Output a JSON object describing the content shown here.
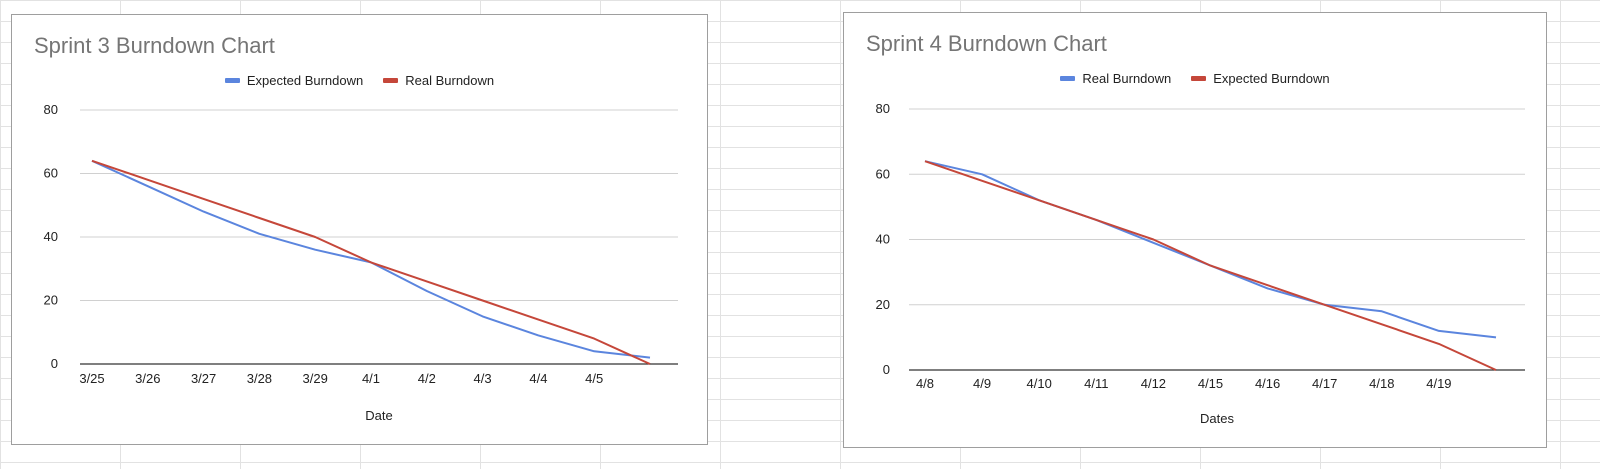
{
  "colors": {
    "blue": "#5b85de",
    "red": "#c5473a",
    "grid": "#d0d0d0",
    "axis": "#333333"
  },
  "chart_data": [
    {
      "type": "line",
      "title": "Sprint 3 Burndown Chart",
      "xlabel": "Date",
      "ylabel": "",
      "categories": [
        "3/25",
        "3/26",
        "3/27",
        "3/28",
        "3/29",
        "4/1",
        "4/2",
        "4/3",
        "4/4",
        "4/5",
        ""
      ],
      "ylim": [
        0,
        80
      ],
      "yticks": [
        0,
        20,
        40,
        60,
        80
      ],
      "grid": true,
      "legend_position": "top",
      "series": [
        {
          "name": "Expected Burndown",
          "color": "#5b85de",
          "values": [
            64,
            56,
            48,
            41,
            36,
            32,
            23,
            15,
            9,
            4,
            2
          ]
        },
        {
          "name": "Real Burndown",
          "color": "#c5473a",
          "values": [
            64,
            58,
            52,
            46,
            40,
            32,
            26,
            20,
            14,
            8,
            0
          ]
        }
      ]
    },
    {
      "type": "line",
      "title": "Sprint 4 Burndown Chart",
      "xlabel": "Dates",
      "ylabel": "",
      "categories": [
        "4/8",
        "4/9",
        "4/10",
        "4/11",
        "4/12",
        "4/15",
        "4/16",
        "4/17",
        "4/18",
        "4/19",
        ""
      ],
      "ylim": [
        0,
        80
      ],
      "yticks": [
        0,
        20,
        40,
        60,
        80
      ],
      "grid": true,
      "legend_position": "top",
      "series": [
        {
          "name": "Real Burndown",
          "color": "#5b85de",
          "values": [
            64,
            60,
            52,
            46,
            39,
            32,
            25,
            20,
            18,
            12,
            10
          ]
        },
        {
          "name": "Expected Burndown",
          "color": "#c5473a",
          "values": [
            64,
            58,
            52,
            46,
            40,
            32,
            26,
            20,
            14,
            8,
            0
          ]
        }
      ]
    }
  ]
}
